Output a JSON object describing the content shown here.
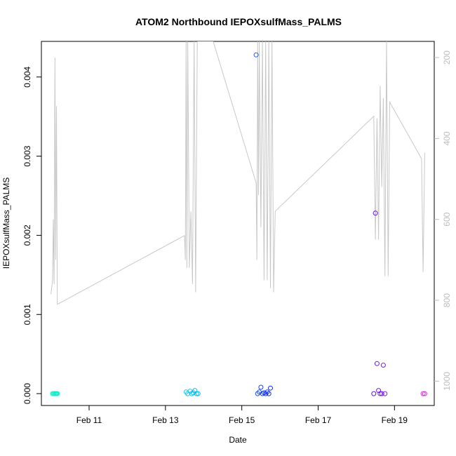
{
  "chart_data": {
    "type": "scatter",
    "title": "ATOM2 Northbound IEPOXsulfMass_PALMS",
    "xlabel": "Date",
    "ylabel": "IEPOXsulfMass_PALMS",
    "x_axis": {
      "type": "date",
      "range": [
        "2017-02-09T18:00",
        "2017-02-20T01:00"
      ],
      "ticks": [
        {
          "value": "2017-02-11",
          "label": "Feb 11"
        },
        {
          "value": "2017-02-13",
          "label": "Feb 13"
        },
        {
          "value": "2017-02-15",
          "label": "Feb 15"
        },
        {
          "value": "2017-02-17",
          "label": "Feb 17"
        },
        {
          "value": "2017-02-19",
          "label": "Feb 19"
        }
      ]
    },
    "y_axis": {
      "range": [
        -0.00015,
        0.00445
      ],
      "ticks": [
        {
          "value": 0,
          "label": "0.000"
        },
        {
          "value": 0.001,
          "label": "0.001"
        },
        {
          "value": 0.002,
          "label": "0.002"
        },
        {
          "value": 0.003,
          "label": "0.003"
        },
        {
          "value": 0.004,
          "label": "0.004"
        }
      ]
    },
    "y2_axis": {
      "description": "secondary right axis for grey trace, inverted (pressure-like)",
      "range": [
        1060,
        160
      ],
      "color": "#bdbdbd",
      "ticks": [
        {
          "value": 200,
          "label": "200"
        },
        {
          "value": 400,
          "label": "400"
        },
        {
          "value": 600,
          "label": "600"
        },
        {
          "value": 800,
          "label": "800"
        },
        {
          "value": 1000,
          "label": "1000"
        }
      ]
    },
    "grid": false,
    "legend": "none",
    "series": [
      {
        "type": "scatter",
        "color_by_time": true,
        "points": [
          {
            "x": "2017-02-10T01:00",
            "y": 0.0,
            "color": "#26f0c2"
          },
          {
            "x": "2017-02-10T01:30",
            "y": 0.0,
            "color": "#2befc4"
          },
          {
            "x": "2017-02-10T02:00",
            "y": 0.0,
            "color": "#22eec8"
          },
          {
            "x": "2017-02-10T02:30",
            "y": 0.0,
            "color": "#1fecca"
          },
          {
            "x": "2017-02-10T03:00",
            "y": 0.0,
            "color": "#1aeacc"
          },
          {
            "x": "2017-02-10T03:30",
            "y": 0.0,
            "color": "#18e9ce"
          },
          {
            "x": "2017-02-10T04:00",
            "y": 0.0,
            "color": "#14e8d0"
          },
          {
            "x": "2017-02-13T13:00",
            "y": 2e-05,
            "color": "#10c8ee"
          },
          {
            "x": "2017-02-13T14:00",
            "y": 0.0,
            "color": "#0fc6ee"
          },
          {
            "x": "2017-02-13T15:30",
            "y": 3e-05,
            "color": "#0fc4ef"
          },
          {
            "x": "2017-02-13T16:30",
            "y": 0.0,
            "color": "#0ec2f0"
          },
          {
            "x": "2017-02-13T17:30",
            "y": 1e-05,
            "color": "#0dc0f0"
          },
          {
            "x": "2017-02-13T18:30",
            "y": 4e-05,
            "color": "#0dbef1"
          },
          {
            "x": "2017-02-13T19:30",
            "y": 0.0,
            "color": "#0cbcf1"
          },
          {
            "x": "2017-02-13T20:30",
            "y": 0.0,
            "color": "#0bbaf2"
          },
          {
            "x": "2017-02-15T09:00",
            "y": 0.00428,
            "color": "#1f58f5"
          },
          {
            "x": "2017-02-15T10:00",
            "y": 0.0,
            "color": "#1a4ff4"
          },
          {
            "x": "2017-02-15T11:00",
            "y": 2e-05,
            "color": "#184af3"
          },
          {
            "x": "2017-02-15T12:00",
            "y": 8e-05,
            "color": "#1645f2"
          },
          {
            "x": "2017-02-15T13:00",
            "y": 0.0,
            "color": "#1440f1"
          },
          {
            "x": "2017-02-15T14:00",
            "y": 1e-05,
            "color": "#123cf0"
          },
          {
            "x": "2017-02-15T15:00",
            "y": 0.0,
            "color": "#1138ef"
          },
          {
            "x": "2017-02-15T16:00",
            "y": 2e-05,
            "color": "#1034ee"
          },
          {
            "x": "2017-02-15T17:00",
            "y": 0.0,
            "color": "#0e30ee"
          },
          {
            "x": "2017-02-15T18:00",
            "y": 7e-05,
            "color": "#0d2ced"
          },
          {
            "x": "2017-02-18T11:00",
            "y": 0.0,
            "color": "#5c14e8"
          },
          {
            "x": "2017-02-18T12:00",
            "y": 0.00228,
            "color": "#6216e8"
          },
          {
            "x": "2017-02-18T13:00",
            "y": 0.00038,
            "color": "#6818e8"
          },
          {
            "x": "2017-02-18T14:00",
            "y": 4e-05,
            "color": "#6d1ae8"
          },
          {
            "x": "2017-02-18T15:00",
            "y": 0.0,
            "color": "#721ce8"
          },
          {
            "x": "2017-02-18T16:00",
            "y": 0.0,
            "color": "#771ee8"
          },
          {
            "x": "2017-02-18T17:00",
            "y": 0.00036,
            "color": "#7c20e8"
          },
          {
            "x": "2017-02-18T18:00",
            "y": 0.0,
            "color": "#8122e8"
          },
          {
            "x": "2017-02-19T18:00",
            "y": 0.0,
            "color": "#cf35d8"
          },
          {
            "x": "2017-02-19T19:00",
            "y": 0.0,
            "color": "#d538d4"
          }
        ]
      },
      {
        "type": "line",
        "axis": "y2",
        "color": "#c8c8c8",
        "points": [
          [
            "2017-02-10T00:00",
            785
          ],
          [
            "2017-02-10T01:00",
            750
          ],
          [
            "2017-02-10T01:30",
            600
          ],
          [
            "2017-02-10T02:00",
            760
          ],
          [
            "2017-02-10T02:30",
            200
          ],
          [
            "2017-02-10T03:00",
            700
          ],
          [
            "2017-02-10T03:30",
            320
          ],
          [
            "2017-02-10T04:00",
            810
          ],
          [
            "2017-02-13T12:00",
            640
          ],
          [
            "2017-02-13T12:30",
            700
          ],
          [
            "2017-02-13T13:00",
            160
          ],
          [
            "2017-02-13T13:30",
            720
          ],
          [
            "2017-02-13T14:00",
            160
          ],
          [
            "2017-02-13T15:00",
            720
          ],
          [
            "2017-02-13T16:00",
            580
          ],
          [
            "2017-02-13T17:00",
            760
          ],
          [
            "2017-02-13T18:00",
            160
          ],
          [
            "2017-02-13T19:00",
            780
          ],
          [
            "2017-02-13T20:00",
            160
          ],
          [
            "2017-02-14T06:00",
            160
          ],
          [
            "2017-02-15T09:00",
            510
          ],
          [
            "2017-02-15T09:30",
            700
          ],
          [
            "2017-02-15T10:00",
            160
          ],
          [
            "2017-02-15T10:30",
            540
          ],
          [
            "2017-02-15T11:00",
            160
          ],
          [
            "2017-02-15T12:00",
            620
          ],
          [
            "2017-02-15T13:00",
            160
          ],
          [
            "2017-02-15T14:00",
            750
          ],
          [
            "2017-02-15T15:00",
            160
          ],
          [
            "2017-02-15T16:00",
            750
          ],
          [
            "2017-02-15T17:00",
            160
          ],
          [
            "2017-02-15T18:00",
            770
          ],
          [
            "2017-02-15T19:00",
            160
          ],
          [
            "2017-02-15T20:00",
            780
          ],
          [
            "2017-02-15T21:00",
            580
          ],
          [
            "2017-02-18T11:00",
            345
          ],
          [
            "2017-02-18T12:00",
            650
          ],
          [
            "2017-02-18T13:00",
            350
          ],
          [
            "2017-02-18T14:00",
            650
          ],
          [
            "2017-02-18T15:00",
            270
          ],
          [
            "2017-02-18T16:00",
            520
          ],
          [
            "2017-02-18T17:00",
            300
          ],
          [
            "2017-02-18T18:00",
            740
          ],
          [
            "2017-02-18T19:00",
            160
          ],
          [
            "2017-02-18T20:00",
            740
          ],
          [
            "2017-02-18T21:00",
            310
          ],
          [
            "2017-02-19T17:00",
            450
          ],
          [
            "2017-02-19T18:00",
            730
          ],
          [
            "2017-02-19T19:00",
            435
          ]
        ]
      }
    ]
  }
}
